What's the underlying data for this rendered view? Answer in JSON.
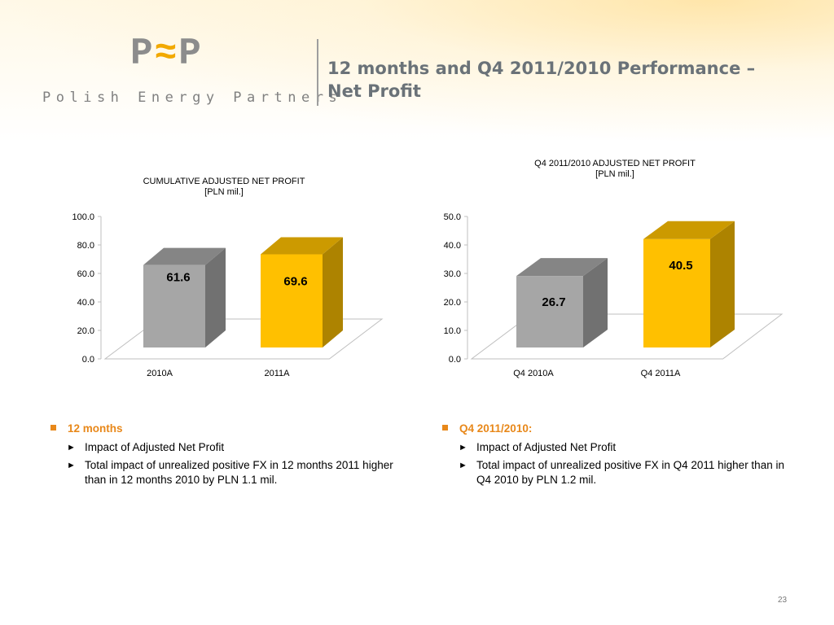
{
  "header": {
    "logo_mark": "P",
    "logo_mark_accent": "≈",
    "logo_mark_end": "P",
    "logo_text": "Polish Energy Partners",
    "title_line1": "12 months and Q4 2011/2010 Performance –",
    "title_line2": "Net Profit"
  },
  "chart_data": [
    {
      "type": "bar",
      "title": "CUMULATIVE ADJUSTED NET PROFIT",
      "subtitle": "[PLN mil.]",
      "categories": [
        "2010A",
        "2011A"
      ],
      "values": [
        61.6,
        69.6
      ],
      "value_labels": [
        "61.6",
        "69.6"
      ],
      "colors": [
        "#a6a6a6",
        "#ffc000"
      ],
      "ylim": [
        0,
        100
      ],
      "yticks": [
        "0.0",
        "20.0",
        "40.0",
        "60.0",
        "80.0",
        "100.0"
      ],
      "grid": false
    },
    {
      "type": "bar",
      "title": "Q4 2011/2010 ADJUSTED NET PROFIT",
      "subtitle": "[PLN mil.]",
      "categories": [
        "Q4 2010A",
        "Q4 2011A"
      ],
      "values": [
        26.7,
        40.5
      ],
      "value_labels": [
        "26.7",
        "40.5"
      ],
      "colors": [
        "#a6a6a6",
        "#ffc000"
      ],
      "ylim": [
        0,
        50
      ],
      "yticks": [
        "0.0",
        "10.0",
        "20.0",
        "30.0",
        "40.0",
        "50.0"
      ],
      "grid": false
    }
  ],
  "bullets_left": {
    "head": "12 months",
    "items": [
      "Impact of Adjusted Net Profit",
      "Total impact of unrealized positive FX in 12 months 2011 higher than in 12 months  2010 by PLN 1.1 mil."
    ]
  },
  "bullets_right": {
    "head": "Q4 2011/2010:",
    "items": [
      "Impact of Adjusted Net Profit",
      "Total impact of unrealized positive FX in Q4 2011 higher than in Q4 2010 by PLN 1.2 mil."
    ]
  },
  "page_number": "23"
}
